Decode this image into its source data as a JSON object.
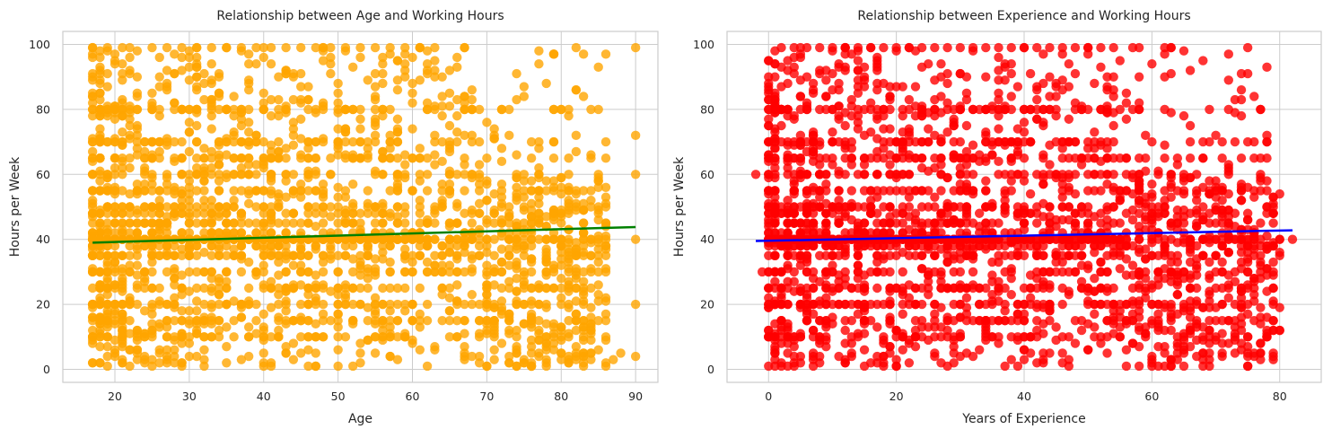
{
  "chart_data": [
    {
      "type": "scatter",
      "title": "Relationship between Age and Working Hours",
      "xlabel": "Age",
      "ylabel": "Hours per Week",
      "xlim": [
        13,
        93
      ],
      "ylim": [
        -4,
        104
      ],
      "xticks": [
        20,
        30,
        40,
        50,
        60,
        70,
        80,
        90
      ],
      "yticks": [
        0,
        20,
        40,
        60,
        80,
        100
      ],
      "grid": true,
      "point_color": "#ffa500",
      "line_color": "#008000",
      "regression_line": {
        "x": [
          17,
          90
        ],
        "y": [
          39.0,
          43.8
        ]
      },
      "series": [
        {
          "values_description": "",
          "x": [
            17,
            18,
            19,
            20,
            21,
            22,
            23,
            24,
            25,
            26,
            27,
            28,
            29,
            30,
            31,
            32,
            33,
            34,
            35,
            36,
            37,
            38,
            39,
            40,
            41,
            42,
            43,
            44,
            45,
            46,
            47,
            48,
            49,
            50,
            51,
            52,
            53,
            54,
            55,
            56,
            57,
            58,
            59,
            60,
            61,
            62,
            63,
            64,
            65,
            66,
            67,
            68,
            69,
            70,
            71,
            72,
            73,
            74,
            75,
            76,
            77,
            78,
            79,
            80,
            81,
            82,
            83,
            84,
            85,
            86,
            87,
            88,
            90,
            19,
            21,
            23,
            25,
            27,
            29,
            31,
            33,
            35,
            37,
            39,
            41,
            43,
            45,
            47,
            49,
            51,
            53,
            55,
            57,
            59,
            61,
            63,
            65,
            67,
            69,
            71,
            73,
            75,
            77,
            79,
            81,
            84,
            90,
            90,
            90,
            90,
            90
          ],
          "y": [
            20,
            15,
            25,
            40,
            40,
            40,
            40,
            40,
            40,
            40,
            45,
            40,
            40,
            45,
            40,
            40,
            45,
            40,
            50,
            40,
            45,
            40,
            40,
            40,
            50,
            40,
            40,
            45,
            40,
            40,
            50,
            40,
            40,
            40,
            45,
            40,
            40,
            40,
            40,
            40,
            40,
            40,
            35,
            40,
            40,
            40,
            40,
            30,
            40,
            35,
            30,
            40,
            20,
            20,
            30,
            25,
            15,
            20,
            20,
            15,
            20,
            10,
            25,
            20,
            20,
            15,
            10,
            40,
            40,
            15,
            3,
            5,
            40,
            99,
            99,
            98,
            99,
            99,
            99,
            99,
            99,
            99,
            99,
            99,
            99,
            99,
            99,
            99,
            99,
            99,
            99,
            99,
            99,
            99,
            99,
            90,
            85,
            80,
            80,
            72,
            72,
            60,
            60,
            55,
            60,
            66,
            99,
            72,
            60,
            20,
            4
          ]
        }
      ]
    },
    {
      "type": "scatter",
      "title": "Relationship between Experience and Working Hours",
      "xlabel": "Years of Experience",
      "ylabel": "Hours per Week",
      "xlim": [
        -6.5,
        86.5
      ],
      "ylim": [
        -4,
        104
      ],
      "xticks": [
        0,
        20,
        40,
        60,
        80
      ],
      "yticks": [
        0,
        20,
        40,
        60,
        80,
        100
      ],
      "grid": true,
      "point_color": "#ff0000",
      "line_color": "#0000ff",
      "regression_line": {
        "x": [
          -2,
          82
        ],
        "y": [
          39.5,
          42.8
        ]
      },
      "series": [
        {
          "values_description": "",
          "x": [
            -2,
            -1,
            0,
            1,
            2,
            3,
            4,
            5,
            6,
            7,
            8,
            9,
            10,
            11,
            12,
            13,
            14,
            15,
            16,
            17,
            18,
            19,
            20,
            21,
            22,
            23,
            24,
            25,
            26,
            27,
            28,
            29,
            30,
            31,
            32,
            33,
            34,
            35,
            36,
            37,
            38,
            39,
            40,
            41,
            42,
            43,
            44,
            45,
            46,
            47,
            48,
            49,
            50,
            51,
            52,
            53,
            54,
            55,
            56,
            57,
            58,
            59,
            60,
            61,
            62,
            63,
            64,
            65,
            66,
            67,
            68,
            69,
            70,
            71,
            72,
            73,
            74,
            75,
            76,
            78,
            79,
            80,
            82,
            2,
            4,
            6,
            8,
            10,
            12,
            14,
            16,
            18,
            20,
            22,
            24,
            26,
            28,
            30,
            32,
            34,
            36,
            38,
            40,
            42,
            44,
            46,
            48,
            50,
            52,
            55,
            58,
            62,
            63,
            66,
            70,
            75
          ],
          "y": [
            60,
            30,
            25,
            30,
            40,
            40,
            45,
            40,
            40,
            40,
            50,
            40,
            40,
            45,
            40,
            40,
            45,
            40,
            50,
            40,
            45,
            40,
            40,
            40,
            50,
            40,
            40,
            45,
            40,
            40,
            50,
            40,
            40,
            40,
            45,
            40,
            40,
            40,
            40,
            40,
            40,
            40,
            35,
            40,
            40,
            40,
            40,
            30,
            40,
            35,
            30,
            40,
            20,
            20,
            30,
            25,
            15,
            20,
            20,
            15,
            20,
            10,
            25,
            20,
            20,
            15,
            10,
            40,
            40,
            15,
            3,
            5,
            40,
            20,
            15,
            10,
            20,
            5,
            4,
            10,
            5,
            40,
            40,
            99,
            99,
            99,
            99,
            99,
            99,
            99,
            99,
            99,
            99,
            99,
            99,
            99,
            99,
            99,
            99,
            99,
            99,
            99,
            99,
            99,
            99,
            99,
            99,
            99,
            99,
            95,
            90,
            99,
            99,
            75,
            72,
            99
          ]
        }
      ]
    }
  ]
}
